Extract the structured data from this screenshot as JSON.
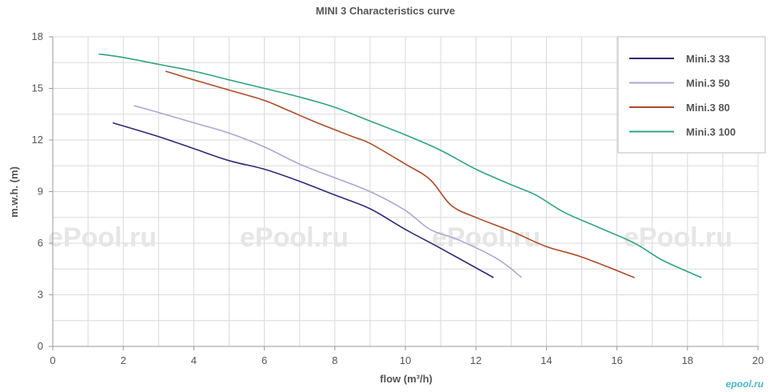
{
  "chart_data": {
    "type": "line",
    "title": "MINI 3 Characteristics curve",
    "xlabel": "flow (m³/h)",
    "ylabel": "m.w.h. (m)",
    "xlim": [
      0,
      20
    ],
    "ylim": [
      0,
      18
    ],
    "xticks": [
      0,
      2,
      4,
      6,
      8,
      10,
      12,
      14,
      16,
      18,
      20
    ],
    "yticks": [
      0,
      3,
      6,
      9,
      12,
      15,
      18
    ],
    "grid": true,
    "legend_position": "top-right",
    "watermark": "ePool.ru",
    "brand": "epool.ru",
    "series": [
      {
        "name": "Mini.3 33",
        "color": "#2b2b7a",
        "x": [
          1.7,
          3,
          4,
          5,
          6,
          7,
          8,
          9,
          10,
          11,
          12.5
        ],
        "y": [
          13,
          12.2,
          11.5,
          10.8,
          10.3,
          9.6,
          8.8,
          8,
          6.8,
          5.7,
          4
        ]
      },
      {
        "name": "Mini.3 50",
        "color": "#a9a7d6",
        "x": [
          2.3,
          3,
          4,
          5,
          6,
          7,
          8,
          9,
          10,
          10.7,
          11.5,
          12.6,
          13.3
        ],
        "y": [
          14,
          13.6,
          13,
          12.4,
          11.6,
          10.6,
          9.8,
          9,
          7.9,
          6.8,
          6.2,
          5.1,
          4
        ]
      },
      {
        "name": "Mini.3 80",
        "color": "#b04a25",
        "x": [
          3.2,
          4,
          5,
          6,
          6.7,
          7.5,
          8.5,
          9,
          10,
          10.7,
          11.3,
          12,
          13,
          14,
          15,
          16.5
        ],
        "y": [
          16,
          15.5,
          14.9,
          14.3,
          13.7,
          13,
          12.2,
          11.8,
          10.6,
          9.7,
          8.2,
          7.5,
          6.7,
          5.8,
          5.2,
          4
        ]
      },
      {
        "name": "Mini.3 100",
        "color": "#2fa57d",
        "x": [
          1.3,
          2,
          3,
          4,
          5,
          6,
          7,
          8,
          9,
          10,
          11,
          12,
          13,
          13.7,
          14.5,
          15.5,
          16.5,
          17.3,
          18.4
        ],
        "y": [
          17,
          16.8,
          16.4,
          16,
          15.5,
          15,
          14.5,
          13.9,
          13.1,
          12.3,
          11.4,
          10.3,
          9.4,
          8.8,
          7.8,
          6.9,
          6,
          5,
          4
        ]
      }
    ]
  }
}
